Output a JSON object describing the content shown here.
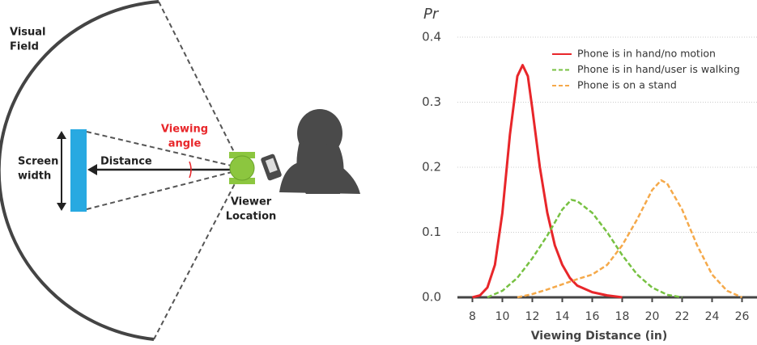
{
  "diagram": {
    "visual_field": [
      "Visual",
      "Field"
    ],
    "viewing_angle": [
      "Viewing",
      "angle"
    ],
    "screen_width": [
      "Screen",
      "width"
    ],
    "distance": "Distance",
    "viewer_location": [
      "Viewer",
      "Location"
    ]
  },
  "chart_data": {
    "type": "line",
    "y_label": "Pr",
    "x_label": "Viewing Distance (in)",
    "xlim": [
      7,
      27
    ],
    "xticks": [
      8,
      10,
      12,
      14,
      16,
      18,
      20,
      22,
      24,
      26
    ],
    "ylim": [
      0,
      0.4
    ],
    "yticks": [
      {
        "value": 0,
        "label": "0.0"
      },
      0.1,
      0.2,
      0.3,
      0.4
    ],
    "grid": true,
    "legend": "upper-right",
    "series": [
      {
        "name": "Phone is in hand/no motion",
        "color": "#e8262a",
        "dashed": false,
        "x": [
          8,
          8.5,
          9,
          9.5,
          10,
          10.5,
          11,
          11.35,
          11.7,
          12,
          12.5,
          13,
          13.5,
          14,
          14.5,
          15,
          16,
          17,
          18
        ],
        "values": [
          0,
          0.003,
          0.015,
          0.05,
          0.13,
          0.25,
          0.34,
          0.357,
          0.34,
          0.29,
          0.2,
          0.13,
          0.08,
          0.05,
          0.03,
          0.018,
          0.008,
          0.003,
          0
        ]
      },
      {
        "name": "Phone is in hand/user is walking",
        "color": "#77c142",
        "dashed": true,
        "x": [
          9,
          10,
          11,
          12,
          13,
          14,
          14.6,
          15,
          16,
          17,
          18,
          19,
          20,
          21,
          22
        ],
        "values": [
          0,
          0.01,
          0.03,
          0.06,
          0.095,
          0.135,
          0.15,
          0.148,
          0.13,
          0.1,
          0.065,
          0.035,
          0.015,
          0.004,
          0
        ]
      },
      {
        "name": "Phone is on a stand",
        "color": "#f5a94a",
        "dashed": true,
        "x": [
          11,
          12,
          13,
          14,
          15,
          16,
          17,
          18,
          19,
          20,
          20.6,
          21,
          22,
          23,
          24,
          25,
          26
        ],
        "values": [
          0,
          0.005,
          0.012,
          0.02,
          0.028,
          0.035,
          0.05,
          0.08,
          0.12,
          0.165,
          0.18,
          0.175,
          0.135,
          0.08,
          0.035,
          0.01,
          0
        ]
      }
    ]
  }
}
